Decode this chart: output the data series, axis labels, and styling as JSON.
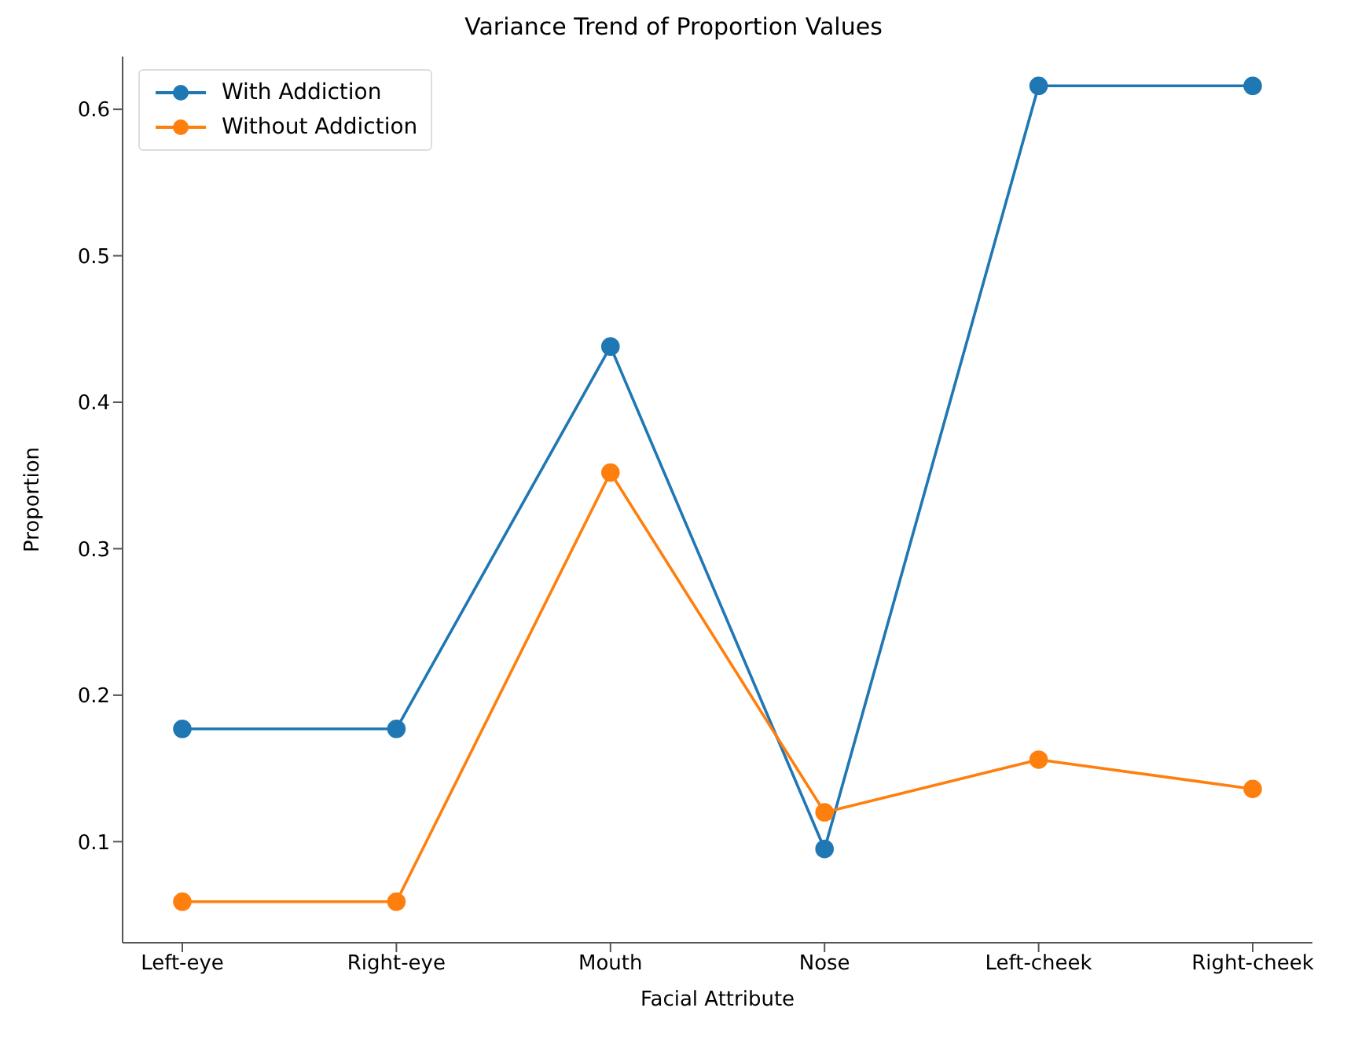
{
  "chart_data": {
    "type": "line",
    "title": "Variance Trend of Proportion Values",
    "xlabel": "Facial Attribute",
    "ylabel": "Proportion",
    "categories": [
      "Left-eye",
      "Right-eye",
      "Mouth",
      "Nose",
      "Left-cheek",
      "Right-cheek"
    ],
    "series": [
      {
        "name": "With Addiction",
        "color": "#1f77b4",
        "values": [
          0.177,
          0.177,
          0.438,
          0.095,
          0.616,
          0.616
        ]
      },
      {
        "name": "Without Addiction",
        "color": "#ff7f0e",
        "values": [
          0.059,
          0.059,
          0.352,
          0.12,
          0.156,
          0.136
        ]
      }
    ],
    "ylim": [
      0.031,
      0.636
    ],
    "yticks": [
      0.1,
      0.2,
      0.3,
      0.4,
      0.5,
      0.6
    ],
    "grid": false,
    "legend": "top left",
    "marker": "circle",
    "line_style": "solid"
  }
}
